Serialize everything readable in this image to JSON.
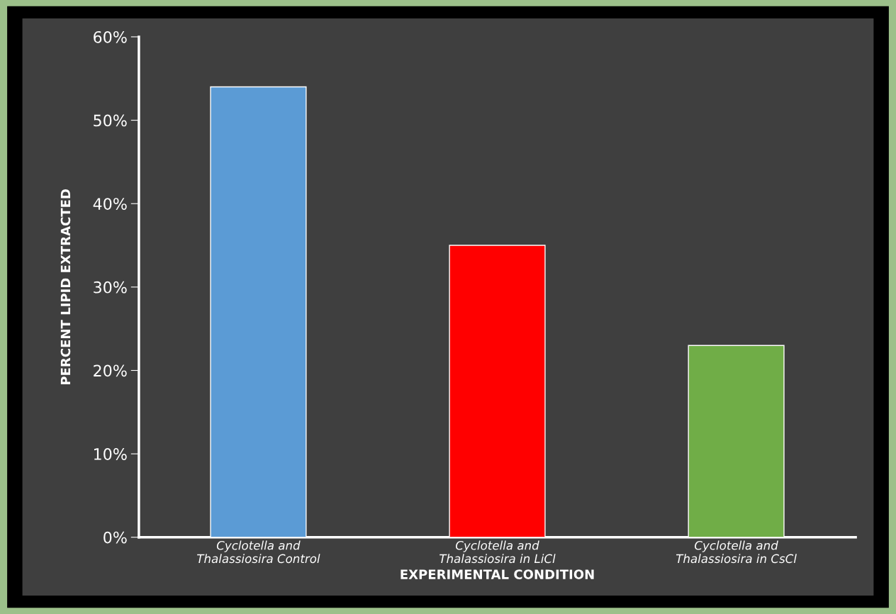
{
  "chart_data": {
    "type": "bar",
    "categories": [
      "Cyclotella and\nThalassiosira Control",
      "Cyclotella and\nThalassiosira in LiCl",
      "Cyclotella and\nThalassiosira in CsCl"
    ],
    "values": [
      54,
      35,
      23
    ],
    "colors": [
      "#5b9bd5",
      "#ff0000",
      "#70ad47"
    ],
    "xlabel": "EXPERIMENTAL CONDITION",
    "ylabel": "PERCENT LIPID EXTRACTED",
    "ylim": [
      0,
      60
    ],
    "yticks": [
      {
        "value": 0,
        "label": "0%"
      },
      {
        "value": 10,
        "label": "10%"
      },
      {
        "value": 20,
        "label": "20%"
      },
      {
        "value": 30,
        "label": "30%"
      },
      {
        "value": 40,
        "label": "40%"
      },
      {
        "value": 50,
        "label": "50%"
      },
      {
        "value": 60,
        "label": "60%"
      }
    ],
    "grid": false
  }
}
